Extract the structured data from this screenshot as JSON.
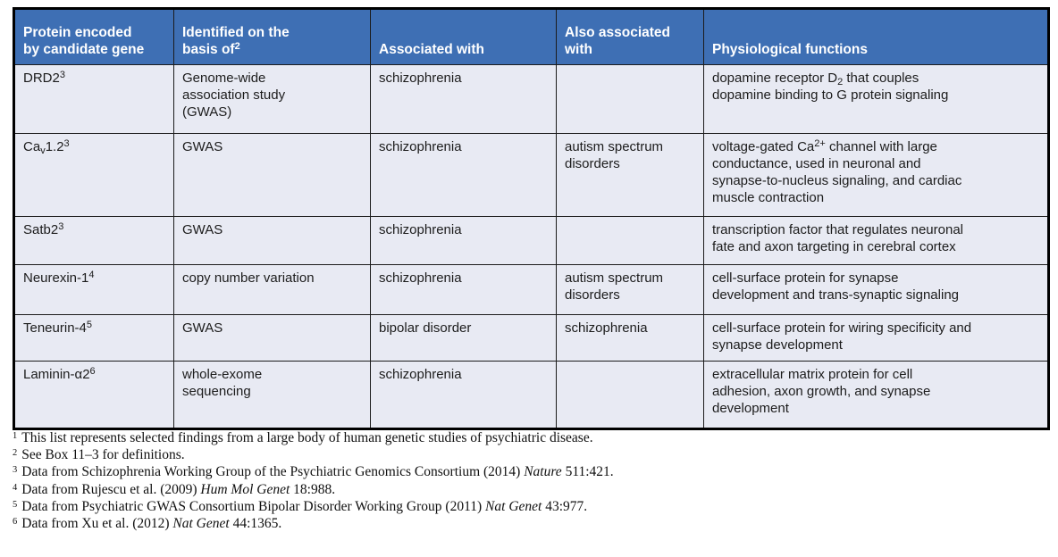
{
  "colors": {
    "header_bg": "#3E6FB4",
    "header_text": "#FFFFFF",
    "body_row_bg": "#E8EAF3",
    "grid_line": "#1B1B1B",
    "outer_border": "#000000"
  },
  "table": {
    "headers": [
      "Protein encoded<br>by candidate gene",
      "Identified on the<br>basis of<sup>2</sup>",
      "Associated with",
      "Also associated<br>with",
      "Physiological functions"
    ],
    "rows": [
      {
        "cells": [
          "DRD2<sup>3</sup>",
          "Genome-wide<br>association study<br>(GWAS)",
          "schizophrenia",
          "",
          "dopamine receptor D<sub>2</sub> that couples<br>dopamine binding to G protein signaling"
        ]
      },
      {
        "cells": [
          "Ca<sub>v</sub>1.2<sup>3</sup>",
          "GWAS",
          "schizophrenia",
          "autism spectrum<br>disorders",
          "voltage-gated Ca<sup>2+</sup> channel with large<br>conductance, used in neuronal and<br>synapse-to-nucleus signaling, and cardiac<br>muscle contraction"
        ]
      },
      {
        "cells": [
          "Satb2<sup>3</sup>",
          "GWAS",
          "schizophrenia",
          "",
          "transcription factor that regulates neuronal<br>fate and axon targeting in cerebral cortex"
        ]
      },
      {
        "cells": [
          "Neurexin-1<sup>4</sup>",
          "copy number variation",
          "schizophrenia",
          "autism spectrum<br>disorders",
          "cell-surface protein for synapse<br>development and trans-synaptic signaling"
        ]
      },
      {
        "cells": [
          "Teneurin-4<sup>5</sup>",
          "GWAS",
          "bipolar disorder",
          "schizophrenia",
          "cell-surface protein for wiring specificity and<br>synapse development"
        ]
      },
      {
        "cells": [
          "Laminin-α2<sup>6</sup>",
          "whole-exome<br>sequencing",
          "schizophrenia",
          "",
          "extracellular matrix protein for cell<br>adhesion, axon growth, and synapse<br>development"
        ]
      }
    ]
  },
  "footnotes": [
    {
      "marker": "1",
      "text": "This list represents selected findings from a large body of human genetic studies of psychiatric disease."
    },
    {
      "marker": "2",
      "text": "See Box 11–3 for definitions."
    },
    {
      "marker": "3",
      "text": "Data from Schizophrenia Working Group of the Psychiatric Genomics Consortium (2014) <i>Nature</i> 511:421."
    },
    {
      "marker": "4",
      "text": "Data from Rujescu et al. (2009) <i>Hum Mol Genet</i> 18:988."
    },
    {
      "marker": "5",
      "text": "Data from Psychiatric GWAS Consortium Bipolar Disorder Working Group (2011) <i>Nat Genet</i> 43:977."
    },
    {
      "marker": "6",
      "text": "Data from Xu et al. (2012) <i>Nat Genet</i> 44:1365."
    }
  ]
}
